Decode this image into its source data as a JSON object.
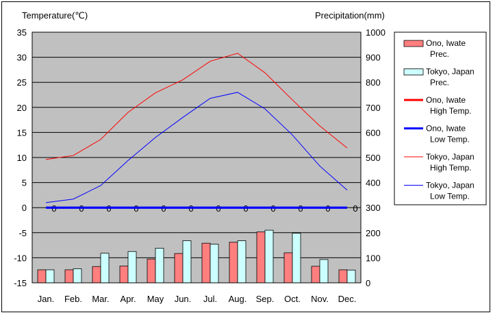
{
  "chart_data": {
    "type": "bar",
    "categories": [
      "Jan.",
      "Feb.",
      "Mar.",
      "Apr.",
      "May",
      "Jun.",
      "Jul.",
      "Aug.",
      "Sep.",
      "Oct.",
      "Nov.",
      "Dec."
    ],
    "left_axis": {
      "label": "Temperature(℃)",
      "ylim": [
        -15,
        35
      ],
      "ticks": [
        35,
        30,
        25,
        20,
        15,
        10,
        5,
        0,
        -5,
        -10,
        -15
      ]
    },
    "right_axis": {
      "label": "Precipitation(mm)",
      "ylim": [
        0,
        1000
      ],
      "ticks": [
        1000,
        900,
        800,
        700,
        600,
        500,
        400,
        300,
        200,
        100,
        0
      ]
    },
    "series": [
      {
        "name": "Ono, Iwate Prec.",
        "kind": "bar",
        "axis": "right",
        "color": "#ff7f7f",
        "values": [
          52,
          52,
          65,
          67,
          95,
          117,
          158,
          162,
          203,
          120,
          66,
          52
        ]
      },
      {
        "name": "Tokyo, Japan Prec.",
        "kind": "bar",
        "axis": "right",
        "color": "#ccffff",
        "values": [
          52,
          56,
          118,
          125,
          138,
          168,
          154,
          168,
          210,
          198,
          93,
          51
        ]
      },
      {
        "name": "Ono, Iwate High Temp.",
        "kind": "line",
        "axis": "left",
        "color": "#0000ff",
        "width": 3,
        "values": [
          0,
          0,
          0,
          0,
          0,
          0,
          0,
          0,
          0,
          0,
          0,
          0
        ],
        "labels": [
          "0",
          "0",
          "0",
          "0",
          "0",
          "0",
          "0",
          "0",
          "0",
          "0",
          "0",
          "0"
        ]
      },
      {
        "name": "Ono, Iwate Low Temp.",
        "kind": "line",
        "axis": "left",
        "color": "#0000ff",
        "width": 3,
        "values": [
          0,
          0,
          0,
          0,
          0,
          0,
          0,
          0,
          0,
          0,
          0,
          0
        ]
      },
      {
        "name": "Tokyo, Japan High Temp.",
        "kind": "line",
        "axis": "left",
        "color": "#ff0000",
        "width": 1,
        "values": [
          9.6,
          10.4,
          13.6,
          19.0,
          22.9,
          25.5,
          29.2,
          30.8,
          26.9,
          21.5,
          16.3,
          11.9
        ]
      },
      {
        "name": "Tokyo, Japan Low Temp.",
        "kind": "line",
        "axis": "left",
        "color": "#0000ff",
        "width": 1,
        "values": [
          1.0,
          1.7,
          4.4,
          9.4,
          14.0,
          18.0,
          21.8,
          23.0,
          19.7,
          14.5,
          8.3,
          3.5
        ]
      }
    ],
    "legend": {
      "placement": "right",
      "entries": [
        {
          "line1": "Ono, Iwate",
          "line2": "Prec.",
          "kind": "bar",
          "color": "#ff7f7f"
        },
        {
          "line1": "Tokyo, Japan",
          "line2": "Prec.",
          "kind": "bar",
          "color": "#ccffff"
        },
        {
          "line1": "Ono, Iwate",
          "line2": "High Temp.",
          "kind": "line",
          "color": "#ff0000",
          "width": 3
        },
        {
          "line1": "Ono, Iwate",
          "line2": "Low Temp.",
          "kind": "line",
          "color": "#0000ff",
          "width": 3
        },
        {
          "line1": "Tokyo, Japan",
          "line2": "High Temp.",
          "kind": "line",
          "color": "#ff0000",
          "width": 1
        },
        {
          "line1": "Tokyo, Japan",
          "line2": "Low Temp.",
          "kind": "line",
          "color": "#0000ff",
          "width": 1
        }
      ]
    },
    "plot_background": "#c0c0c0",
    "grid": true
  }
}
